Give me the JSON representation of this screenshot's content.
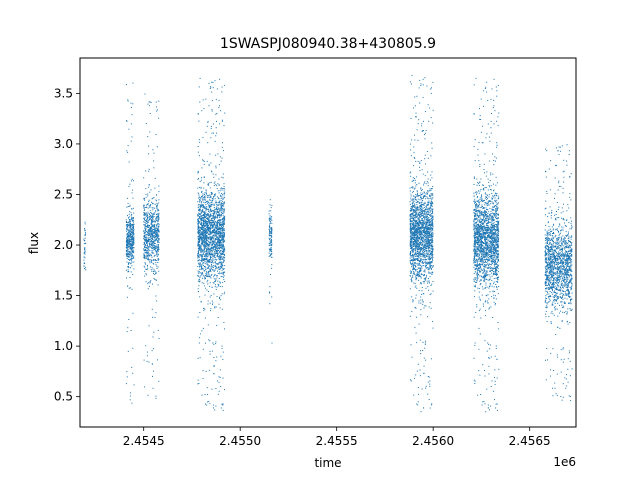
{
  "chart_data": {
    "type": "scatter",
    "title": "1SWASPJ080940.38+430805.9",
    "xlabel": "time",
    "ylabel": "flux",
    "x_offset_label": "1e6",
    "xlim": [
      2454170,
      2456740
    ],
    "ylim": [
      0.2,
      3.85
    ],
    "x_ticks": [
      2454500,
      2455000,
      2455500,
      2456000,
      2456500
    ],
    "x_tick_labels": [
      "2.4545",
      "2.4550",
      "2.4555",
      "2.4560",
      "2.4565"
    ],
    "y_ticks": [
      0.5,
      1.0,
      1.5,
      2.0,
      2.5,
      3.0,
      3.5
    ],
    "y_tick_labels": [
      "0.5",
      "1.0",
      "1.5",
      "2.0",
      "2.5",
      "3.0",
      "3.5"
    ],
    "grid": false,
    "legend": "none",
    "series_color": "#1f77b4",
    "clusters": [
      {
        "x_start": 2454190,
        "x_end": 2454200,
        "y_min": 1.5,
        "y_max": 2.55,
        "y_center": 2.0,
        "spread": 0.15,
        "count": 40
      },
      {
        "x_start": 2454410,
        "x_end": 2454450,
        "y_min": 0.35,
        "y_max": 3.65,
        "y_center": 2.05,
        "spread": 0.13,
        "count": 500
      },
      {
        "x_start": 2454500,
        "x_end": 2454580,
        "y_min": 0.45,
        "y_max": 3.5,
        "y_center": 2.1,
        "spread": 0.18,
        "count": 800
      },
      {
        "x_start": 2454780,
        "x_end": 2454920,
        "y_min": 0.35,
        "y_max": 3.65,
        "y_center": 2.1,
        "spread": 0.22,
        "count": 2200
      },
      {
        "x_start": 2455150,
        "x_end": 2455165,
        "y_min": 0.8,
        "y_max": 2.6,
        "y_center": 2.1,
        "spread": 0.12,
        "count": 120
      },
      {
        "x_start": 2455880,
        "x_end": 2456000,
        "y_min": 0.35,
        "y_max": 3.68,
        "y_center": 2.1,
        "spread": 0.22,
        "count": 2000
      },
      {
        "x_start": 2456210,
        "x_end": 2456340,
        "y_min": 0.35,
        "y_max": 3.65,
        "y_center": 2.05,
        "spread": 0.22,
        "count": 2000
      },
      {
        "x_start": 2456580,
        "x_end": 2456720,
        "y_min": 0.45,
        "y_max": 3.0,
        "y_center": 1.8,
        "spread": 0.2,
        "count": 1500
      }
    ]
  }
}
